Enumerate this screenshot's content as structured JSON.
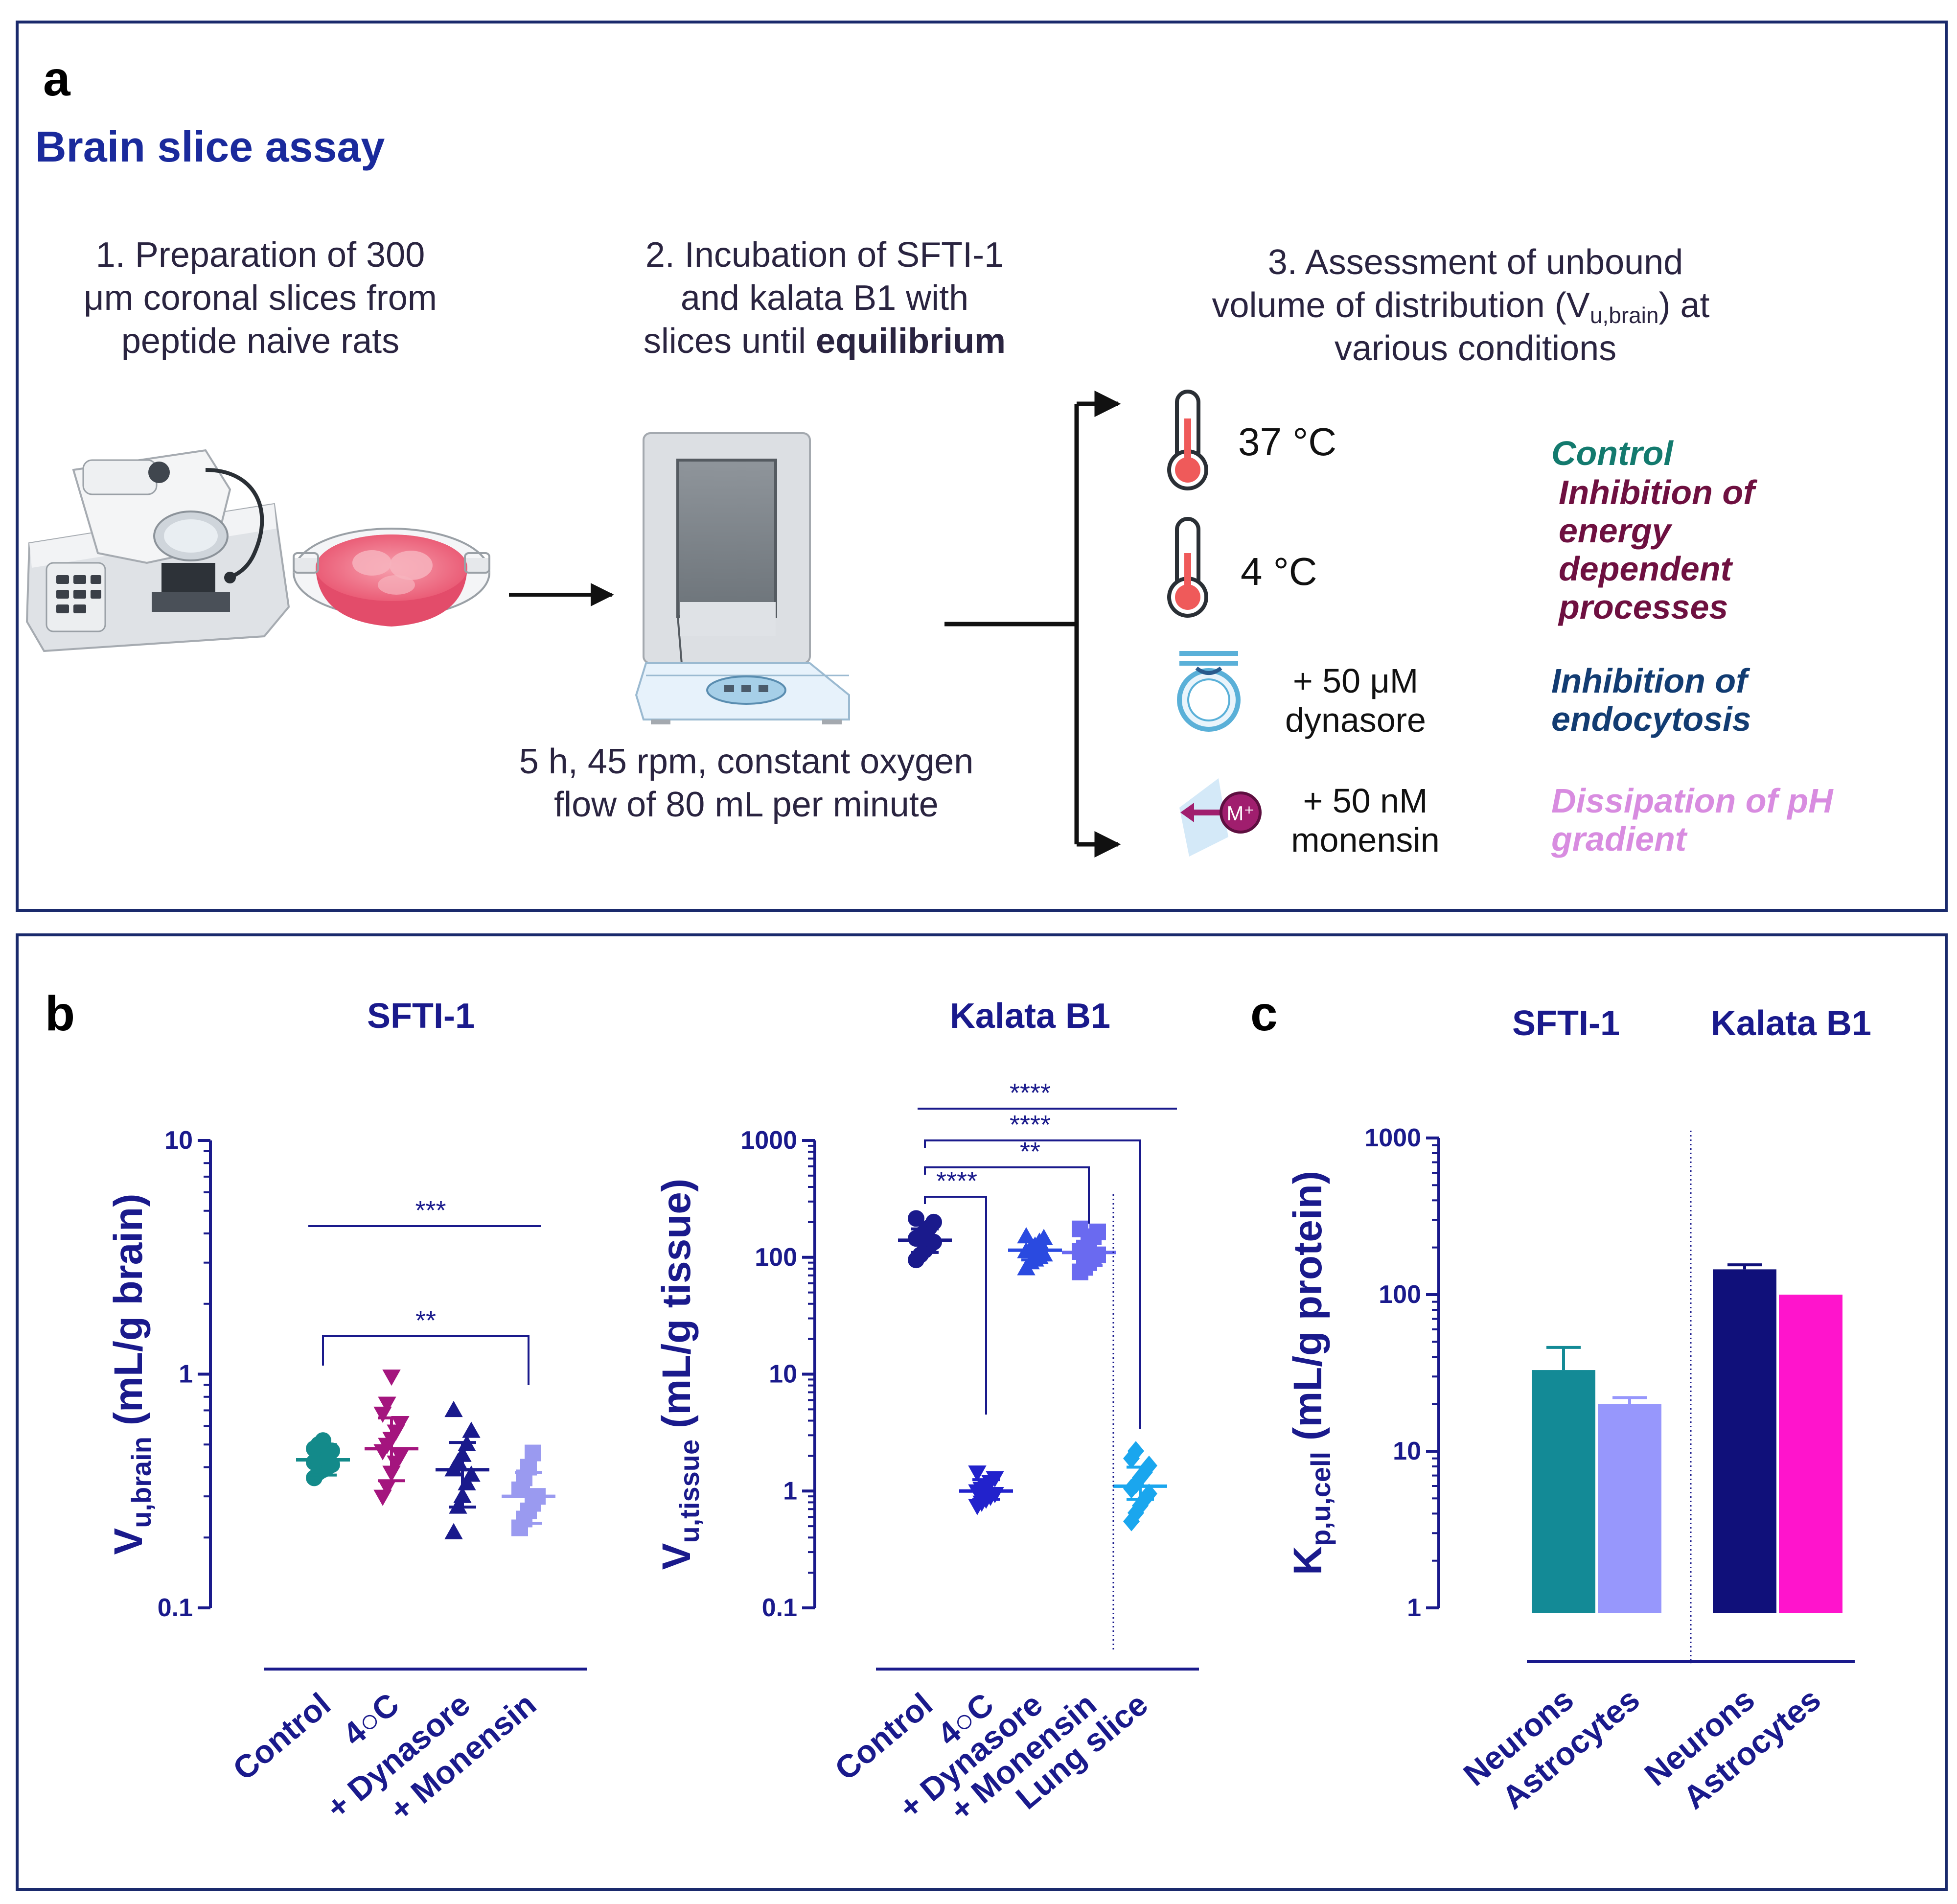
{
  "panel_a": {
    "letter": "a",
    "title": "Brain slice assay",
    "step1": [
      "1. Preparation of 300",
      "μm coronal slices from",
      "peptide naive rats"
    ],
    "step2_lines": [
      "2. Incubation of SFTI-1",
      "and kalata B1 with"
    ],
    "step2_prefix": "slices until ",
    "step2_bold": "equilibrium",
    "step3_line1": "3. Assessment of unbound",
    "step3_line2_a": "volume of distribution (V",
    "step3_line2_sub": "u,brain",
    "step3_line2_b": ") at",
    "step3_line3": "various conditions",
    "incubation": [
      "5 h, 45 rpm, constant oxygen",
      "flow of 80 mL per minute"
    ],
    "cond_37": "37 °C",
    "cond_4": "4 °C",
    "cond_dyn": [
      "+ 50 μM",
      "dynasore"
    ],
    "cond_mon": [
      "+ 50 nM",
      "monensin"
    ],
    "monensin_icon_label": "M⁺",
    "label_control": "Control",
    "label_energy": [
      "Inhibition of",
      "energy",
      "dependent",
      "processes"
    ],
    "label_endo": [
      "Inhibition of",
      "endocytosis"
    ],
    "label_ph": [
      "Dissipation of pH",
      "gradient"
    ],
    "colors": {
      "navy": "#1a1a8c",
      "control": "#137a6e",
      "energy": "#6e1040",
      "endo": "#123c72",
      "ph": "#d88ce0"
    }
  },
  "panel_b_letter": "b",
  "panel_c_letter": "c",
  "chart_data": [
    {
      "id": "sfti",
      "type": "scatter",
      "title": "SFTI-1",
      "ylabel_main": "V",
      "ylabel_sub": "u,brain",
      "ylabel_rest": " (mL/g brain)",
      "yscale": "log",
      "ylim": [
        0.1,
        10
      ],
      "yticks": [
        {
          "v": 10,
          "label": "10"
        },
        {
          "v": 1,
          "label": "1"
        },
        {
          "v": 0.1,
          "label": "0.1"
        }
      ],
      "categories": [
        "Control",
        "4○C",
        "+ Dynasore",
        "+ Monensin"
      ],
      "groups": [
        {
          "name": "Control",
          "marker": "circle",
          "color": "#138a8a",
          "mean": 0.43,
          "sd_low": 0.37,
          "sd_high": 0.5,
          "points": [
            0.36,
            0.38,
            0.39,
            0.4,
            0.41,
            0.42,
            0.43,
            0.44,
            0.45,
            0.47,
            0.48,
            0.5,
            0.52
          ]
        },
        {
          "name": "4○C",
          "marker": "tri-down",
          "color": "#a4157e",
          "mean": 0.48,
          "sd_low": 0.35,
          "sd_high": 0.65,
          "points": [
            0.3,
            0.33,
            0.38,
            0.42,
            0.45,
            0.47,
            0.5,
            0.53,
            0.57,
            0.62,
            0.68,
            0.75,
            0.98
          ]
        },
        {
          "name": "+ Dynasore",
          "marker": "tri-up",
          "color": "#1a1a8c",
          "mean": 0.39,
          "sd_low": 0.27,
          "sd_high": 0.51,
          "points": [
            0.21,
            0.27,
            0.3,
            0.34,
            0.37,
            0.39,
            0.42,
            0.45,
            0.5,
            0.57,
            0.7
          ]
        },
        {
          "name": "+ Monensin",
          "marker": "square",
          "color": "#9a9af0",
          "mean": 0.3,
          "sd_low": 0.23,
          "sd_high": 0.38,
          "points": [
            0.22,
            0.24,
            0.26,
            0.28,
            0.3,
            0.32,
            0.36,
            0.4,
            0.46
          ]
        }
      ],
      "significance": [
        {
          "label": "***",
          "from": 0,
          "to": 3,
          "style": "line"
        },
        {
          "label": "**",
          "from": 0,
          "to": 3,
          "style": "bracket"
        }
      ]
    },
    {
      "id": "kalata",
      "type": "scatter",
      "title": "Kalata B1",
      "ylabel_main": "V",
      "ylabel_sub": "u,tissue",
      "ylabel_rest": " (mL/g tissue)",
      "yscale": "log",
      "ylim": [
        0.1,
        1000
      ],
      "yticks": [
        {
          "v": 1000,
          "label": "1000"
        },
        {
          "v": 100,
          "label": "100"
        },
        {
          "v": 10,
          "label": "10"
        },
        {
          "v": 1,
          "label": "1"
        },
        {
          "v": 0.1,
          "label": "0.1"
        }
      ],
      "categories": [
        "Control",
        "4○C",
        "+ Dynasore",
        "+ Monensin",
        "Lung slice"
      ],
      "groups": [
        {
          "name": "Control",
          "marker": "circle",
          "color": "#1a1a8c",
          "mean": 140,
          "sd_low": 110,
          "sd_high": 175,
          "points": [
            95,
            105,
            115,
            125,
            135,
            145,
            155,
            165,
            180,
            200,
            215
          ]
        },
        {
          "name": "4○C",
          "marker": "tri-down",
          "color": "#2222cc",
          "mean": 1.0,
          "sd_low": 0.85,
          "sd_high": 1.25,
          "points": [
            0.75,
            0.8,
            0.85,
            0.9,
            0.95,
            1.0,
            1.05,
            1.1,
            1.2,
            1.3,
            1.45
          ]
        },
        {
          "name": "+ Dynasore",
          "marker": "tri-up",
          "color": "#2a4ae0",
          "mean": 115,
          "sd_low": 95,
          "sd_high": 140,
          "points": [
            80,
            90,
            95,
            100,
            105,
            112,
            118,
            125,
            135,
            145,
            150
          ]
        },
        {
          "name": "+ Monensin",
          "marker": "square",
          "color": "#6a6af0",
          "mean": 110,
          "sd_low": 85,
          "sd_high": 160,
          "points": [
            75,
            82,
            90,
            98,
            105,
            112,
            120,
            135,
            150,
            165,
            175
          ]
        },
        {
          "name": "Lung slice",
          "marker": "diamond",
          "color": "#1aa6ee",
          "mean": 1.1,
          "sd_low": 0.85,
          "sd_high": 1.6,
          "points": [
            0.55,
            0.65,
            0.75,
            0.85,
            0.95,
            1.05,
            1.15,
            1.3,
            1.45,
            1.65,
            1.9,
            2.2
          ]
        }
      ],
      "significance": [
        {
          "label": "****",
          "from": 0,
          "to": 4,
          "style": "line"
        },
        {
          "label": "****",
          "from": 0,
          "to": 4,
          "style": "bracket"
        },
        {
          "label": "**",
          "from": 0,
          "to": 3,
          "style": "bracket"
        },
        {
          "label": "****",
          "from": 0,
          "to": 1,
          "style": "bracket"
        }
      ]
    },
    {
      "id": "kpcell",
      "type": "bar",
      "titles": [
        "SFTI-1",
        "Kalata B1"
      ],
      "ylabel_main": "K",
      "ylabel_sub": "p,u,cell",
      "ylabel_rest": " (mL/g protein)",
      "yscale": "log",
      "ylim": [
        1,
        1000
      ],
      "yticks": [
        {
          "v": 1000,
          "label": "1000"
        },
        {
          "v": 100,
          "label": "100"
        },
        {
          "v": 10,
          "label": "10"
        },
        {
          "v": 1,
          "label": "1"
        }
      ],
      "categories": [
        "Neurons",
        "Astrocytes",
        "Neurons",
        "Astrocytes"
      ],
      "series": [
        {
          "name": "SFTI-1 Neurons",
          "value": 33,
          "error": 46,
          "color": "#138a96"
        },
        {
          "name": "SFTI-1 Astrocytes",
          "value": 20,
          "error": 22,
          "color": "#9797fc"
        },
        {
          "name": "Kalata B1 Neurons",
          "value": 145,
          "error": 155,
          "color": "#10107a"
        },
        {
          "name": "Kalata B1 Astrocytes",
          "value": 100,
          "error": 100,
          "color": "#ff14cc"
        }
      ]
    }
  ]
}
